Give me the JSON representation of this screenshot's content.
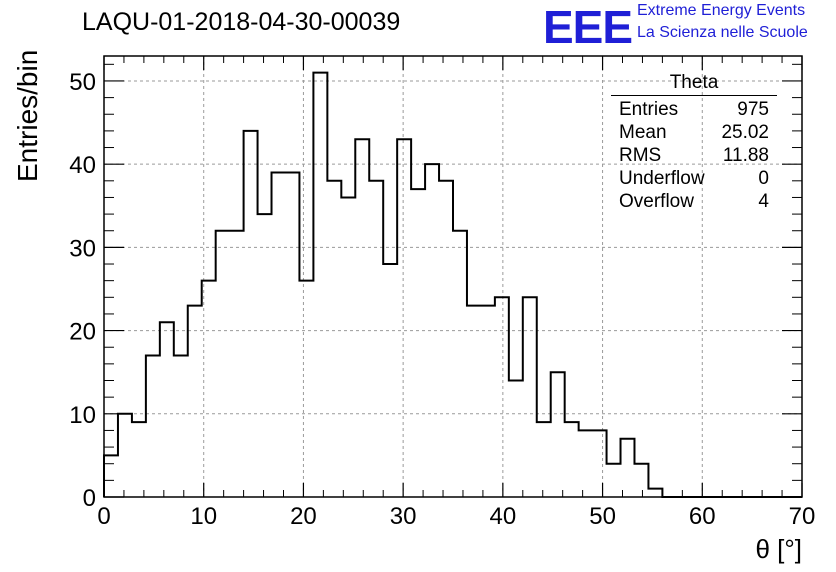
{
  "title": "LAQU-01-2018-04-30-00039",
  "logo": {
    "mark": "EEE",
    "line1": "Extreme Energy Events",
    "line2": "La Scienza nelle Scuole",
    "color": "#1f1fd6"
  },
  "stats_box": {
    "name": "Theta",
    "rows": [
      {
        "label": "Entries",
        "value": "975"
      },
      {
        "label": "Mean",
        "value": "25.02"
      },
      {
        "label": "RMS",
        "value": "11.88"
      },
      {
        "label": "Underflow",
        "value": "0"
      },
      {
        "label": "Overflow",
        "value": "4"
      }
    ]
  },
  "chart_data": {
    "type": "histogram",
    "title": "LAQU-01-2018-04-30-00039",
    "xlabel": "θ [°]",
    "ylabel": "Entries/bin",
    "xlim": [
      0,
      70
    ],
    "ylim": [
      0,
      53
    ],
    "xticks": [
      0,
      10,
      20,
      30,
      40,
      50,
      60,
      70
    ],
    "yticks": [
      0,
      10,
      20,
      30,
      40,
      50
    ],
    "grid": true,
    "bin_width": 1.4,
    "bin_edges_start": 0,
    "values": [
      5,
      10,
      9,
      17,
      21,
      17,
      23,
      26,
      32,
      32,
      44,
      34,
      39,
      39,
      26,
      51,
      38,
      36,
      43,
      38,
      28,
      43,
      37,
      40,
      38,
      32,
      23,
      23,
      24,
      14,
      24,
      9,
      15,
      9,
      8,
      8,
      4,
      7,
      4,
      1,
      0,
      0,
      0,
      0,
      0,
      0,
      0,
      0,
      0,
      0
    ]
  }
}
